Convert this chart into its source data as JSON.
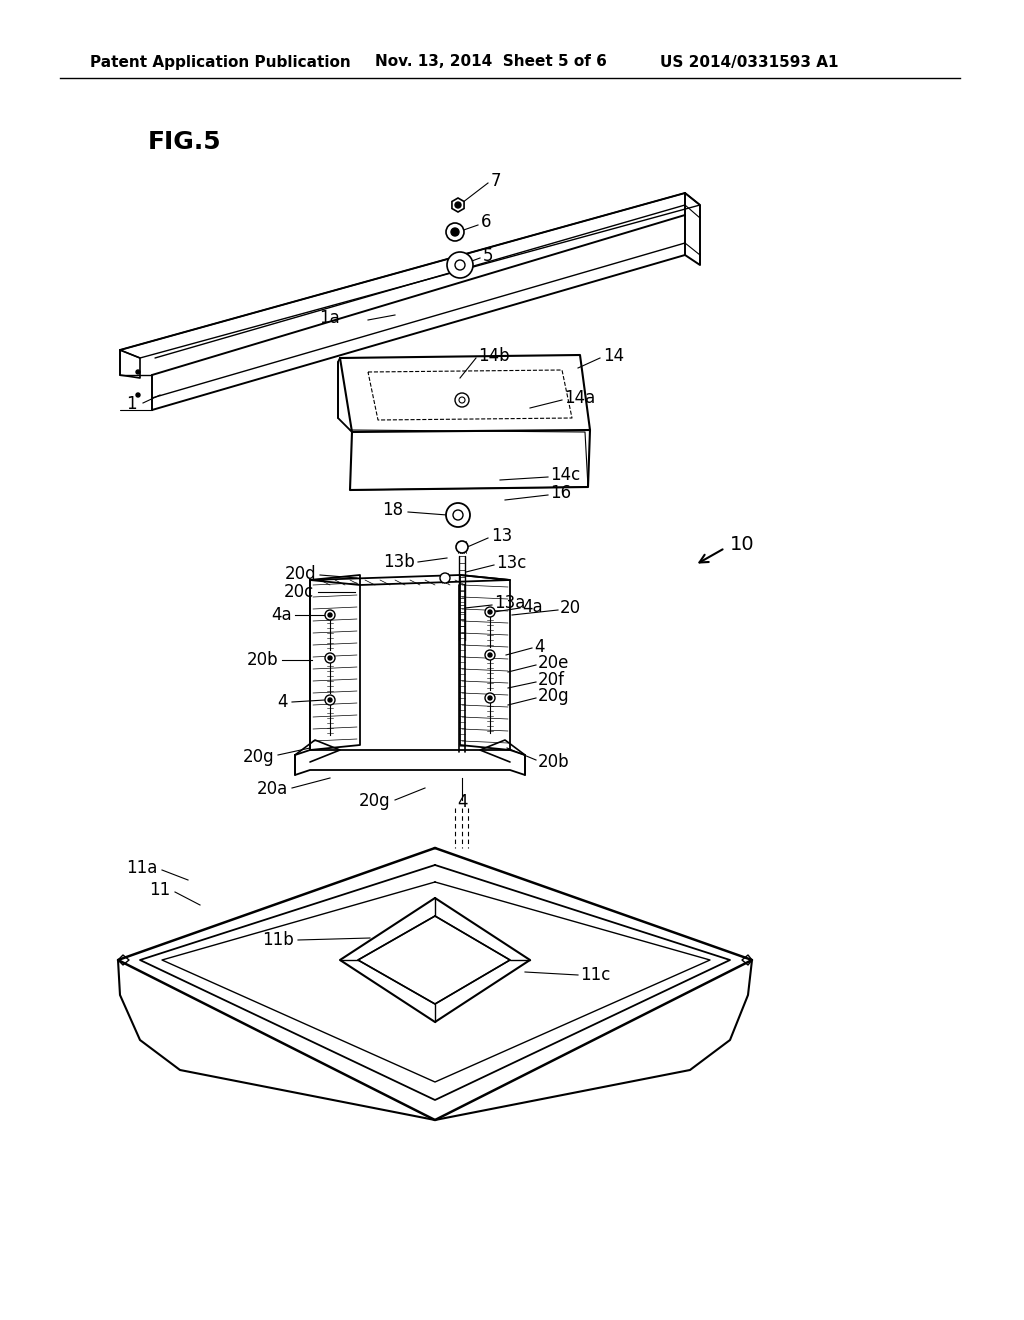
{
  "bg_color": "#ffffff",
  "line_color": "#000000",
  "header_left": "Patent Application Publication",
  "header_mid": "Nov. 13, 2014  Sheet 5 of 6",
  "header_right": "US 2014/0331593 A1",
  "fig_label": "FIG.5",
  "header_fontsize": 11,
  "fig_label_fontsize": 18,
  "annotation_fontsize": 12
}
